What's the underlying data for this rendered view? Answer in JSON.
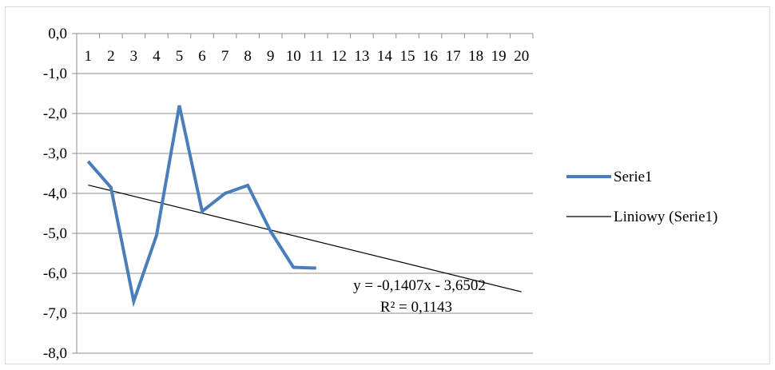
{
  "chart_data": {
    "type": "line",
    "x": [
      1,
      2,
      3,
      4,
      5,
      6,
      7,
      8,
      9,
      10,
      11
    ],
    "x_tick_labels": [
      "1",
      "2",
      "3",
      "4",
      "5",
      "6",
      "7",
      "8",
      "9",
      "10",
      "11",
      "12",
      "13",
      "14",
      "15",
      "16",
      "17",
      "18",
      "19",
      "20"
    ],
    "y_tick_labels": [
      "0,0",
      "-1,0",
      "-2,0",
      "-3,0",
      "-4,0",
      "-5,0",
      "-6,0",
      "-7,0",
      "-8,0"
    ],
    "ylim": [
      -8,
      0
    ],
    "xlim": [
      1,
      20
    ],
    "grid": "horizontal",
    "legend": "right",
    "series": [
      {
        "name": "Serie1",
        "color": "#4a7ebb",
        "values": [
          -3.2,
          -3.85,
          -6.7,
          -5.05,
          -1.8,
          -4.45,
          -4.0,
          -3.8,
          -4.95,
          -5.85,
          -5.87
        ]
      }
    ],
    "trendline": {
      "name": "Liniowy (Serie1)",
      "color": "#000000",
      "slope": -0.1407,
      "intercept": -3.6502,
      "x_range": [
        1,
        20
      ],
      "equation": "y = -0,1407x - 3,6502",
      "r_squared": "R² = 0,1143"
    }
  }
}
